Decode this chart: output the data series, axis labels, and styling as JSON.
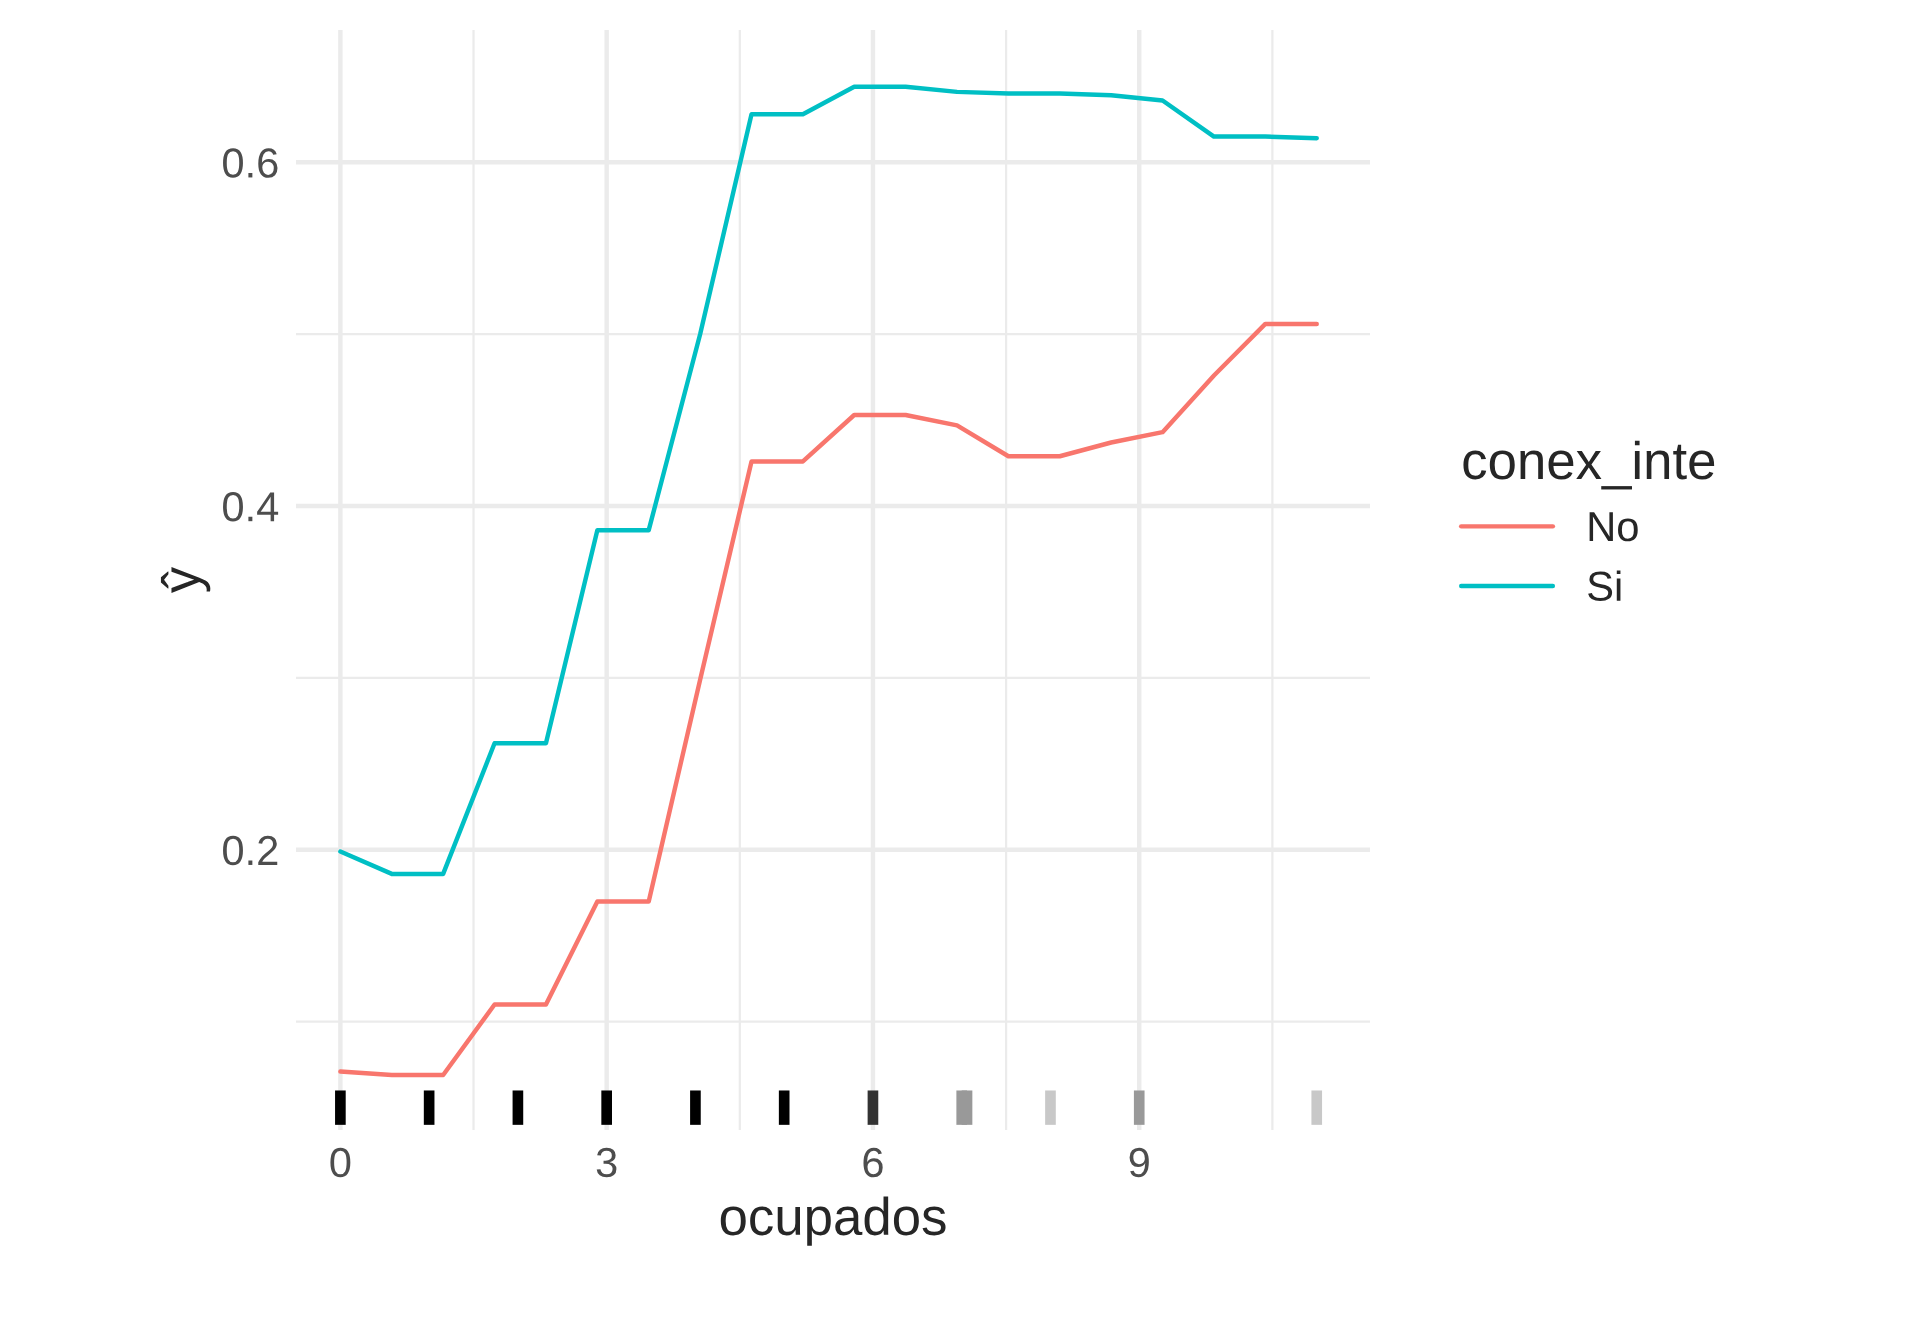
{
  "chart_data": {
    "type": "line",
    "xlabel": "ocupados",
    "ylabel": "ŷ",
    "legend_title": "conex_inte",
    "x": [
      0,
      0.579,
      1.158,
      1.737,
      2.316,
      2.895,
      3.474,
      4.053,
      4.632,
      5.211,
      5.789,
      6.368,
      6.947,
      7.526,
      8.105,
      8.684,
      9.263,
      9.842,
      10.421,
      11
    ],
    "series": [
      {
        "name": "No",
        "color": "#f8766d",
        "values": [
          0.071,
          0.069,
          0.069,
          0.11,
          0.11,
          0.17,
          0.17,
          0.299,
          0.426,
          0.426,
          0.453,
          0.453,
          0.447,
          0.429,
          0.429,
          0.437,
          0.443,
          0.476,
          0.506,
          0.506
        ]
      },
      {
        "name": "Si",
        "color": "#00bfc4",
        "values": [
          0.199,
          0.186,
          0.186,
          0.262,
          0.262,
          0.386,
          0.386,
          0.5,
          0.628,
          0.628,
          0.644,
          0.644,
          0.641,
          0.64,
          0.64,
          0.639,
          0.636,
          0.615,
          0.615,
          0.614
        ]
      },
      {
        "type": "bar",
        "x": [
          0,
          1,
          2,
          3,
          4,
          5,
          6,
          7,
          7.06,
          8,
          9,
          11
        ],
        "values": [
          0.02,
          0.02,
          0.02,
          0.02,
          0.02,
          0.02,
          0.02,
          0.02,
          0.02,
          0.02,
          0.02,
          0.02
        ],
        "base": [
          0.04,
          0.04,
          0.04,
          0.04,
          0.04,
          0.04,
          0.04,
          0.04,
          0.04,
          0.04,
          0.04,
          0.04
        ],
        "colors": [
          "#000000",
          "#000000",
          "#000000",
          "#000000",
          "#000000",
          "#000000",
          "#333333",
          "#999999",
          "#999999",
          "#c8c8c8",
          "#999999",
          "#c8c8c8"
        ]
      }
    ],
    "xlim": [
      -0.5,
      11.6
    ],
    "ylim": [
      0.037,
      0.677
    ],
    "xticks": [
      0,
      3,
      6,
      9
    ],
    "yticks": [
      0.2,
      0.4,
      0.6
    ],
    "grid": true,
    "legend": "right"
  }
}
